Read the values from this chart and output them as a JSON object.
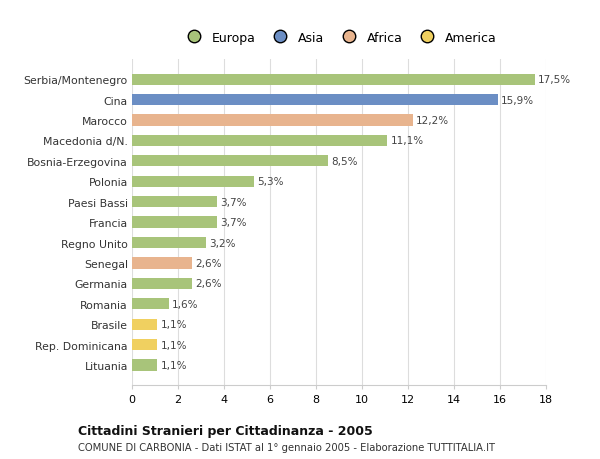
{
  "categories": [
    "Serbia/Montenegro",
    "Cina",
    "Marocco",
    "Macedonia d/N.",
    "Bosnia-Erzegovina",
    "Polonia",
    "Paesi Bassi",
    "Francia",
    "Regno Unito",
    "Senegal",
    "Germania",
    "Romania",
    "Brasile",
    "Rep. Dominicana",
    "Lituania"
  ],
  "values": [
    17.5,
    15.9,
    12.2,
    11.1,
    8.5,
    5.3,
    3.7,
    3.7,
    3.2,
    2.6,
    2.6,
    1.6,
    1.1,
    1.1,
    1.1
  ],
  "labels": [
    "17,5%",
    "15,9%",
    "12,2%",
    "11,1%",
    "8,5%",
    "5,3%",
    "3,7%",
    "3,7%",
    "3,2%",
    "2,6%",
    "2,6%",
    "1,6%",
    "1,1%",
    "1,1%",
    "1,1%"
  ],
  "continent": [
    "Europa",
    "Asia",
    "Africa",
    "Europa",
    "Europa",
    "Europa",
    "Europa",
    "Europa",
    "Europa",
    "Africa",
    "Europa",
    "Europa",
    "America",
    "America",
    "Europa"
  ],
  "colors": {
    "Europa": "#a8c47a",
    "Asia": "#6b8ec4",
    "Africa": "#e8b48e",
    "America": "#f0d060"
  },
  "legend_order": [
    "Europa",
    "Asia",
    "Africa",
    "America"
  ],
  "legend_colors": [
    "#a8c47a",
    "#6b8ec4",
    "#e8b48e",
    "#f0d060"
  ],
  "xlim": [
    0,
    18
  ],
  "xticks": [
    0,
    2,
    4,
    6,
    8,
    10,
    12,
    14,
    16,
    18
  ],
  "title": "Cittadini Stranieri per Cittadinanza - 2005",
  "subtitle": "COMUNE DI CARBONIA - Dati ISTAT al 1° gennaio 2005 - Elaborazione TUTTITALIA.IT",
  "background_color": "#ffffff",
  "grid_color": "#dddddd",
  "bar_height": 0.55
}
